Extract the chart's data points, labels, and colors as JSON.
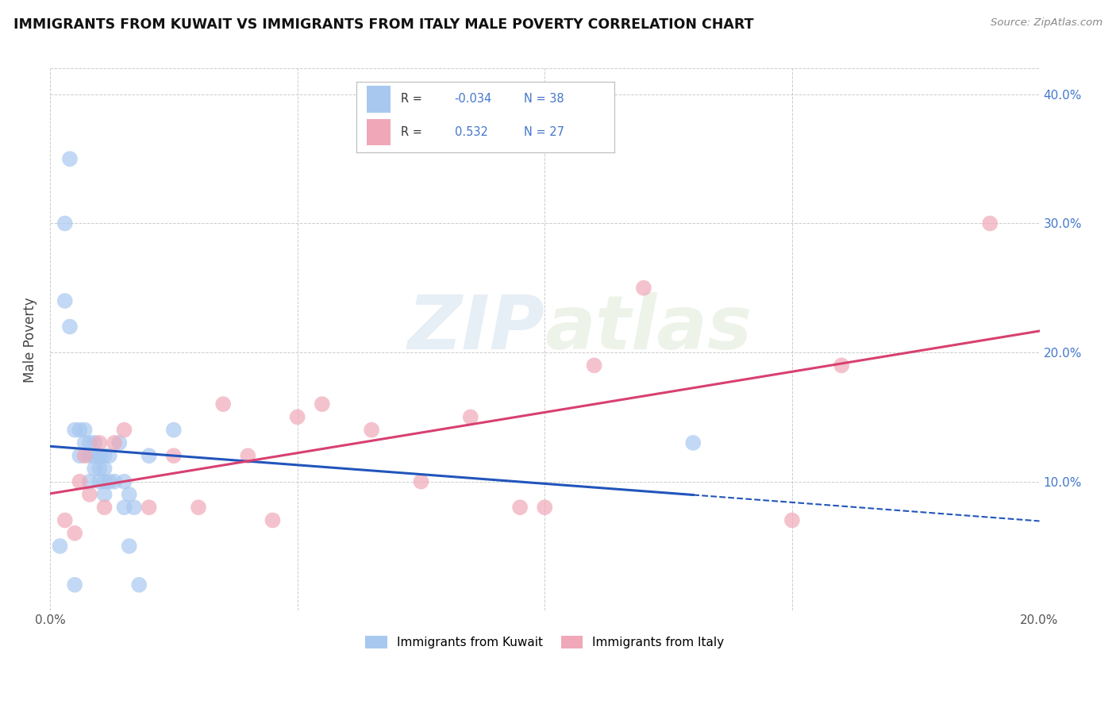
{
  "title": "IMMIGRANTS FROM KUWAIT VS IMMIGRANTS FROM ITALY MALE POVERTY CORRELATION CHART",
  "source_text": "Source: ZipAtlas.com",
  "ylabel": "Male Poverty",
  "xlim": [
    0.0,
    0.2
  ],
  "ylim": [
    0.0,
    0.42
  ],
  "r_kuwait": -0.034,
  "n_kuwait": 38,
  "r_italy": 0.532,
  "n_italy": 27,
  "kuwait_color": "#a8c8f0",
  "italy_color": "#f0a8b8",
  "kuwait_line_color": "#2255bb",
  "italy_line_color": "#d84070",
  "background_color": "#ffffff",
  "grid_color": "#cccccc",
  "watermark_text": "ZIPatlas",
  "kuwait_x": [
    0.002,
    0.003,
    0.003,
    0.004,
    0.005,
    0.006,
    0.006,
    0.007,
    0.007,
    0.008,
    0.008,
    0.008,
    0.009,
    0.009,
    0.009,
    0.01,
    0.01,
    0.01,
    0.01,
    0.011,
    0.011,
    0.011,
    0.011,
    0.012,
    0.012,
    0.013,
    0.014,
    0.015,
    0.015,
    0.016,
    0.016,
    0.017,
    0.018,
    0.02,
    0.025,
    0.004,
    0.13,
    0.005
  ],
  "kuwait_y": [
    0.05,
    0.3,
    0.24,
    0.22,
    0.14,
    0.14,
    0.12,
    0.13,
    0.14,
    0.12,
    0.1,
    0.13,
    0.13,
    0.12,
    0.11,
    0.12,
    0.11,
    0.12,
    0.1,
    0.11,
    0.12,
    0.1,
    0.09,
    0.12,
    0.1,
    0.1,
    0.13,
    0.1,
    0.08,
    0.09,
    0.05,
    0.08,
    0.02,
    0.12,
    0.14,
    0.35,
    0.13,
    0.02
  ],
  "italy_x": [
    0.003,
    0.005,
    0.006,
    0.007,
    0.008,
    0.01,
    0.011,
    0.013,
    0.015,
    0.02,
    0.025,
    0.03,
    0.035,
    0.04,
    0.045,
    0.05,
    0.055,
    0.065,
    0.075,
    0.085,
    0.095,
    0.1,
    0.11,
    0.12,
    0.15,
    0.16,
    0.19
  ],
  "italy_y": [
    0.07,
    0.06,
    0.1,
    0.12,
    0.09,
    0.13,
    0.08,
    0.13,
    0.14,
    0.08,
    0.12,
    0.08,
    0.16,
    0.12,
    0.07,
    0.15,
    0.16,
    0.14,
    0.1,
    0.15,
    0.08,
    0.08,
    0.19,
    0.25,
    0.07,
    0.19,
    0.3
  ]
}
